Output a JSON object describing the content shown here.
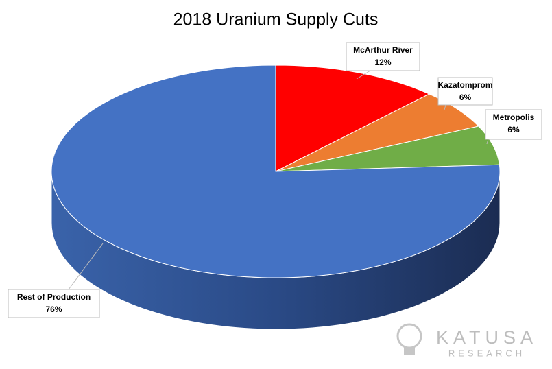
{
  "chart_data": {
    "type": "pie",
    "title": "2018 Uranium Supply Cuts",
    "categories": [
      "McArthur River",
      "Kazatomprom",
      "Metropolis",
      "Rest of Production"
    ],
    "values": [
      12,
      6,
      6,
      76
    ],
    "value_labels": [
      "12%",
      "6%",
      "6%",
      "76%"
    ],
    "colors": [
      "#ff0000",
      "#ed7d31",
      "#70ad47",
      "#4472c4"
    ]
  },
  "logo": {
    "name": "KATUSA",
    "subtitle": "RESEARCH"
  }
}
